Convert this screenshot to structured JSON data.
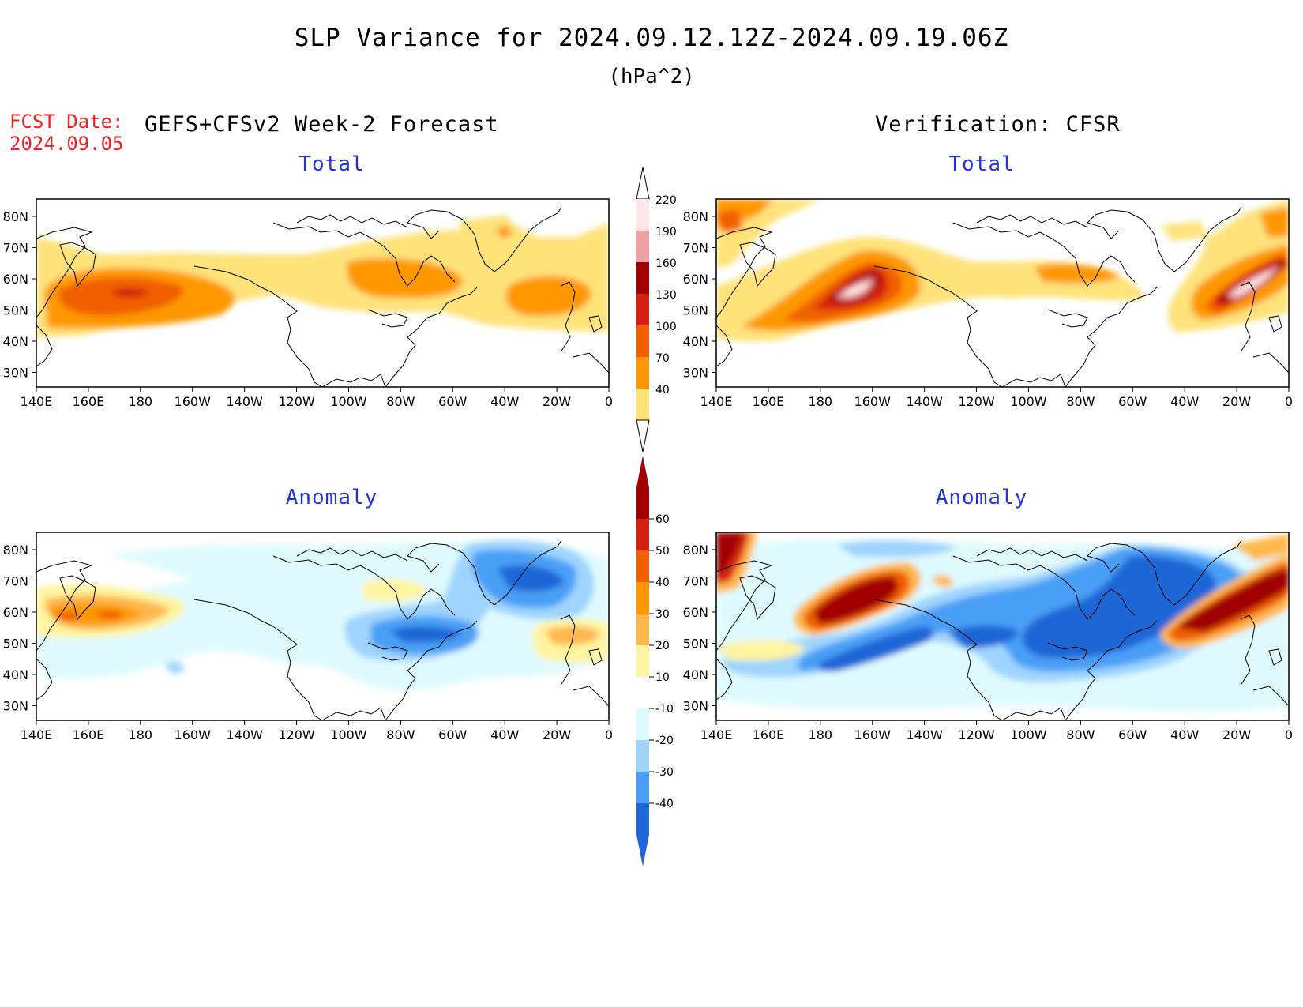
{
  "figure": {
    "title": "SLP Variance for 2024.09.12.12Z-2024.09.19.06Z",
    "units": "(hPa^2)",
    "fcst_label": "FCST Date:",
    "fcst_date": "2024.09.05",
    "left_header": "GEFS+CFSv2 Week-2 Forecast",
    "right_header": "Verification: CFSR"
  },
  "panels": [
    {
      "id": "fcst-total",
      "title": "Total"
    },
    {
      "id": "verif-total",
      "title": "Total"
    },
    {
      "id": "fcst-anomaly",
      "title": "Anomaly"
    },
    {
      "id": "verif-anomaly",
      "title": "Anomaly"
    }
  ],
  "map": {
    "lon_labels": [
      "140E",
      "160E",
      "180",
      "160W",
      "140W",
      "120W",
      "100W",
      "80W",
      "60W",
      "40W",
      "20W",
      "0"
    ],
    "lat_labels": [
      "80N",
      "70N",
      "60N",
      "50N",
      "40N",
      "30N"
    ]
  },
  "colorbars": {
    "total": {
      "labels": [
        "220",
        "190",
        "160",
        "130",
        "100",
        "70",
        "40"
      ],
      "colors": [
        "#ffe5e5",
        "#f0a0a0",
        "#a00000",
        "#d42010",
        "#f06000",
        "#ff9800",
        "#ffe27a"
      ]
    },
    "anomaly": {
      "labels": [
        "60",
        "50",
        "40",
        "30",
        "20",
        "10",
        "-10",
        "-20",
        "-30",
        "-40"
      ],
      "colors": [
        "#a00000",
        "#d42010",
        "#f06000",
        "#ff9800",
        "#ffb84d",
        "#fff4a0",
        "#ffffff",
        "#dffaff",
        "#9fd4ff",
        "#4a9ff5",
        "#1f66d6"
      ]
    }
  }
}
